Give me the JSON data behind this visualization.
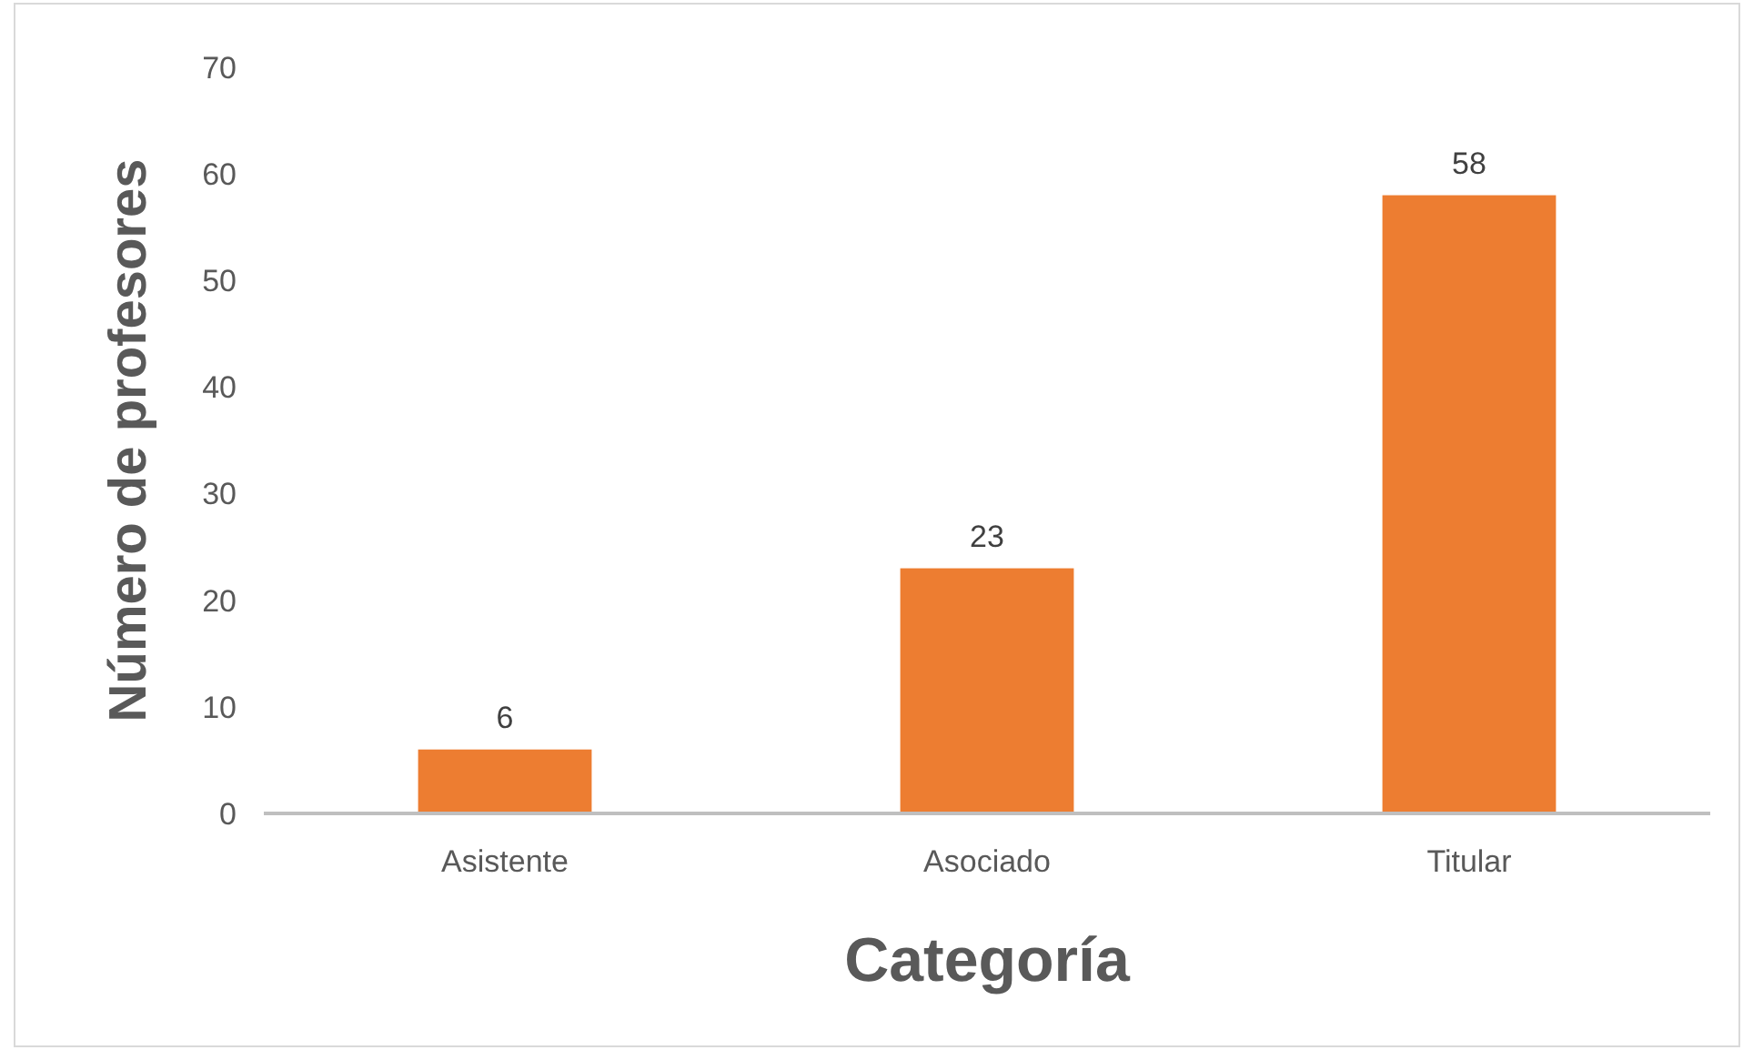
{
  "chart_data": {
    "type": "bar",
    "xlabel": "Categoría",
    "ylabel": "Número de profesores",
    "categories": [
      "Asistente",
      "Asociado",
      "Titular"
    ],
    "values": [
      6,
      23,
      58
    ],
    "color": "#ed7d31",
    "ylim": [
      0,
      70
    ],
    "yticks": [
      0,
      10,
      20,
      30,
      40,
      50,
      60,
      70
    ],
    "grid": false,
    "data_labels": true
  }
}
